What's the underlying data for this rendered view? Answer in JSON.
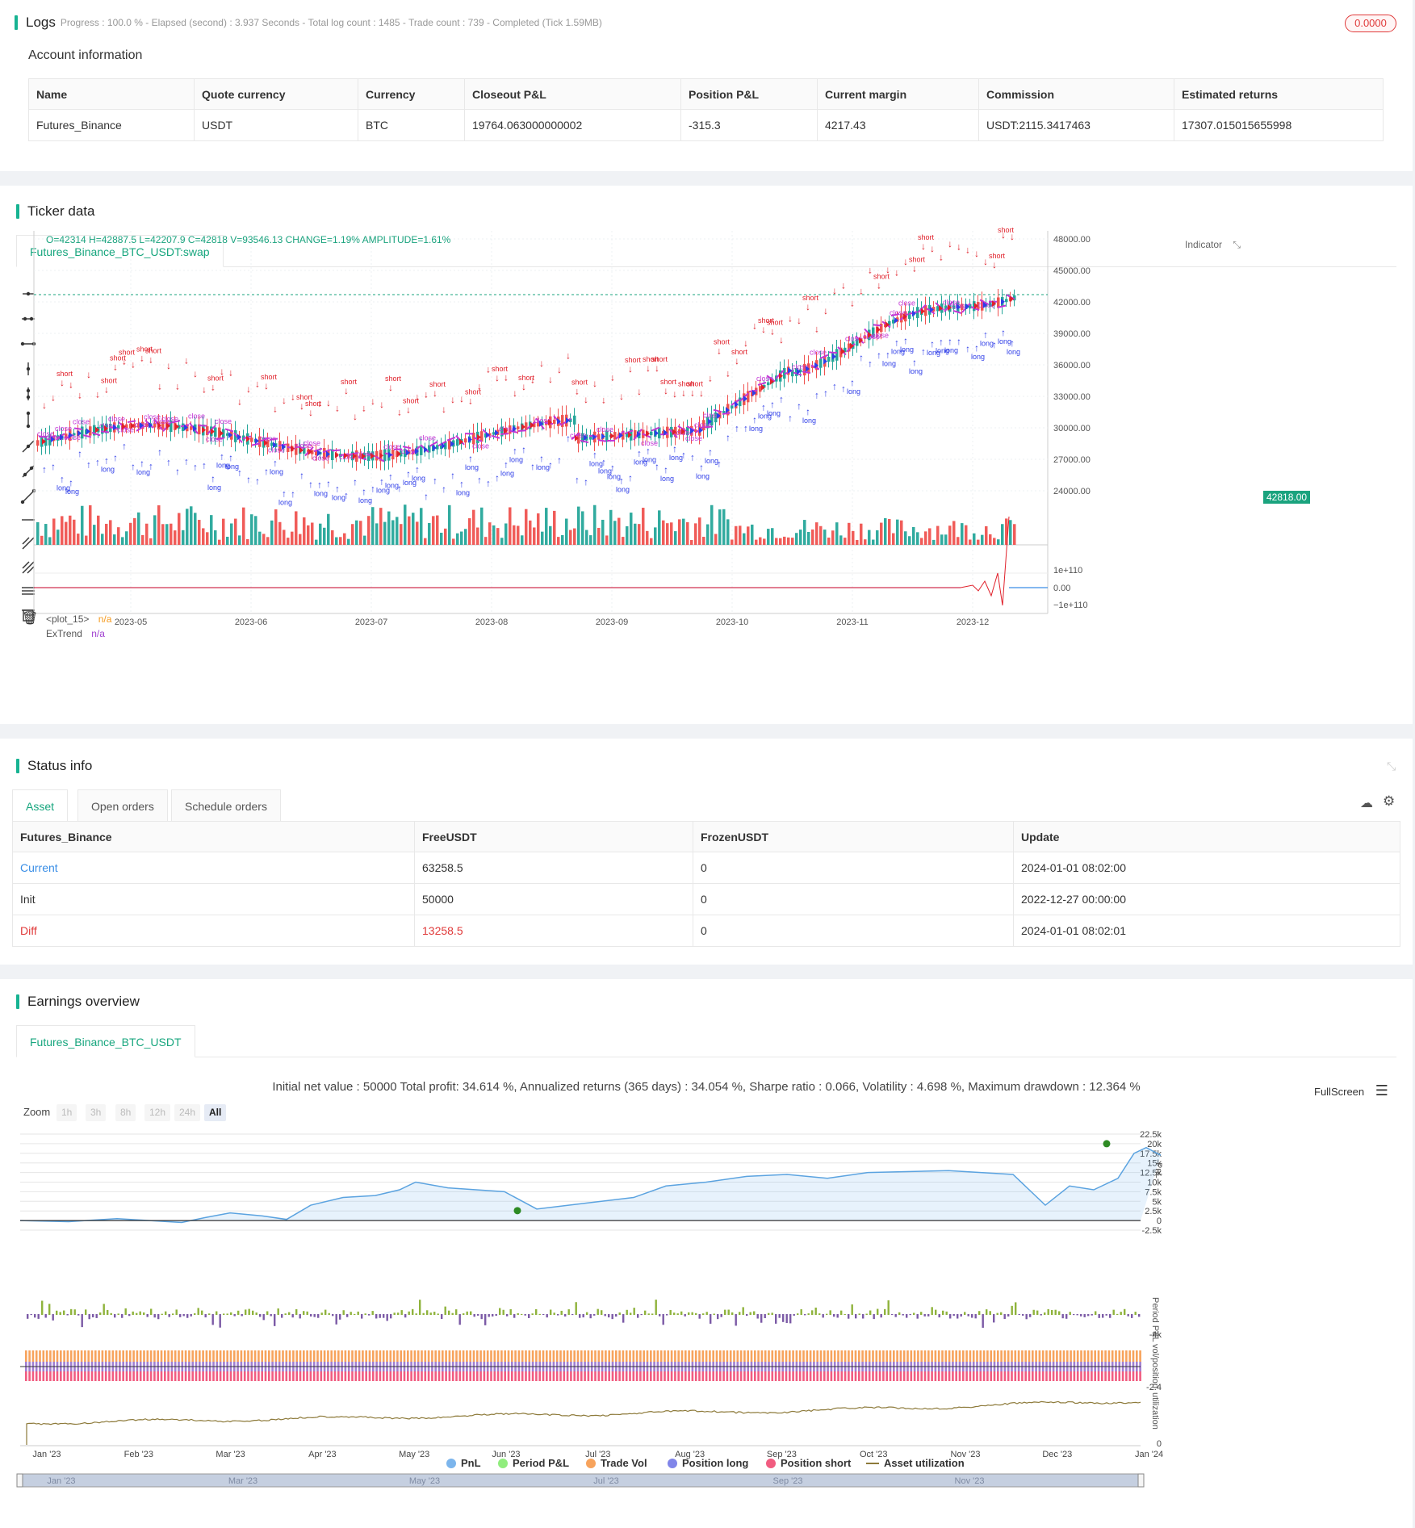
{
  "logs": {
    "title": "Logs",
    "status_line": "Progress : 100.0 % - Elapsed (second) : 3.937  Seconds - Total log count : 1485 - Trade count : 739 - Completed (Tick 1.59MB)",
    "badge": "0.0000"
  },
  "account": {
    "title": "Account information",
    "headers": [
      "Name",
      "Quote currency",
      "Currency",
      "Closeout P&L",
      "Position P&L",
      "Current margin",
      "Commission",
      "Estimated returns"
    ],
    "row": [
      "Futures_Binance",
      "USDT",
      "BTC",
      "19764.063000000002",
      "-315.3",
      "4217.43",
      "USDT:2115.3417463",
      "17307.015015655998"
    ]
  },
  "ticker": {
    "title": "Ticker data",
    "tab": "Futures_Binance_BTC_USDT:swap",
    "ohlc": "O=42314 H=42887.5 L=42207.9 C=42818 V=93546.13 CHANGE=1.19% AMPLITUDE=1.61%",
    "indicator_label": "Indicator",
    "price_tag": "42818.00",
    "y_ticks": [
      "48000.00",
      "45000.00",
      "42000.00",
      "39000.00",
      "36000.00",
      "33000.00",
      "30000.00",
      "27000.00",
      "24000.00"
    ],
    "sub_ticks": [
      "1e+110",
      "0.00",
      "−1e+110"
    ],
    "x_ticks": [
      "2023-05",
      "2023-06",
      "2023-07",
      "2023-08",
      "2023-09",
      "2023-10",
      "2023-11",
      "2023-12"
    ],
    "plot15_label": "<plot_15>",
    "plot15_value": "n/a",
    "extrend_label": "ExTrend",
    "extrend_value": "n/a",
    "colors": {
      "up": "#26a69a",
      "down": "#ef5350",
      "short": "#e0202a",
      "long": "#2f3ee8",
      "close": "#c436d6"
    }
  },
  "status": {
    "title": "Status info",
    "tabs": [
      "Asset",
      "Open orders",
      "Schedule orders"
    ],
    "headers": [
      "Futures_Binance",
      "FreeUSDT",
      "FrozenUSDT",
      "Update"
    ],
    "rows": [
      [
        "Current",
        "63258.5",
        "0",
        "2024-01-01 08:02:00"
      ],
      [
        "Init",
        "50000",
        "0",
        "2022-12-27 00:00:00"
      ],
      [
        "Diff",
        "13258.5",
        "0",
        "2024-01-01 08:02:01"
      ]
    ]
  },
  "earnings": {
    "title": "Earnings overview",
    "tab": "Futures_Binance_BTC_USDT",
    "summary": "Initial net value : 50000 Total profit: 34.614 %, Annualized returns (365 days) : 34.054 %, Sharpe ratio : 0.066, Volatility : 4.698 %, Maximum drawdown : 12.364 %",
    "fullscreen": "FullScreen",
    "zoom_label": "Zoom",
    "zoom_options": [
      "1h",
      "3h",
      "8h",
      "12h",
      "24h",
      "All"
    ],
    "pnl_ticks": [
      "22.5k",
      "20k",
      "17.5k",
      "15k",
      "12.5k",
      "10k",
      "7.5k",
      "5k",
      "2.5k",
      "0",
      "-2.5k"
    ],
    "period_tick": "-4k",
    "vol_tick": "-2.4",
    "util_tick": "0",
    "axis_names": [
      "PnL",
      "Period P&L",
      "vol/position",
      "utilization"
    ],
    "x_ticks": [
      "Jan '23",
      "Feb '23",
      "Mar '23",
      "Apr '23",
      "May '23",
      "Jun '23",
      "Jul '23",
      "Aug '23",
      "Sep '23",
      "Oct '23",
      "Nov '23",
      "Dec '23",
      "Jan '24"
    ],
    "navigator_ticks": [
      "Jan '23",
      "Mar '23",
      "May '23",
      "Jul '23",
      "Sep '23",
      "Nov '23"
    ],
    "legend": [
      {
        "label": "PnL",
        "color": "#7cb5ec"
      },
      {
        "label": "Period P&L",
        "color": "#90ed7d"
      },
      {
        "label": "Trade Vol",
        "color": "#f7a35c"
      },
      {
        "label": "Position long",
        "color": "#8085e9"
      },
      {
        "label": "Position short",
        "color": "#f15c80"
      },
      {
        "label": "Asset utilization",
        "color": "#8d7a3a"
      }
    ]
  }
}
